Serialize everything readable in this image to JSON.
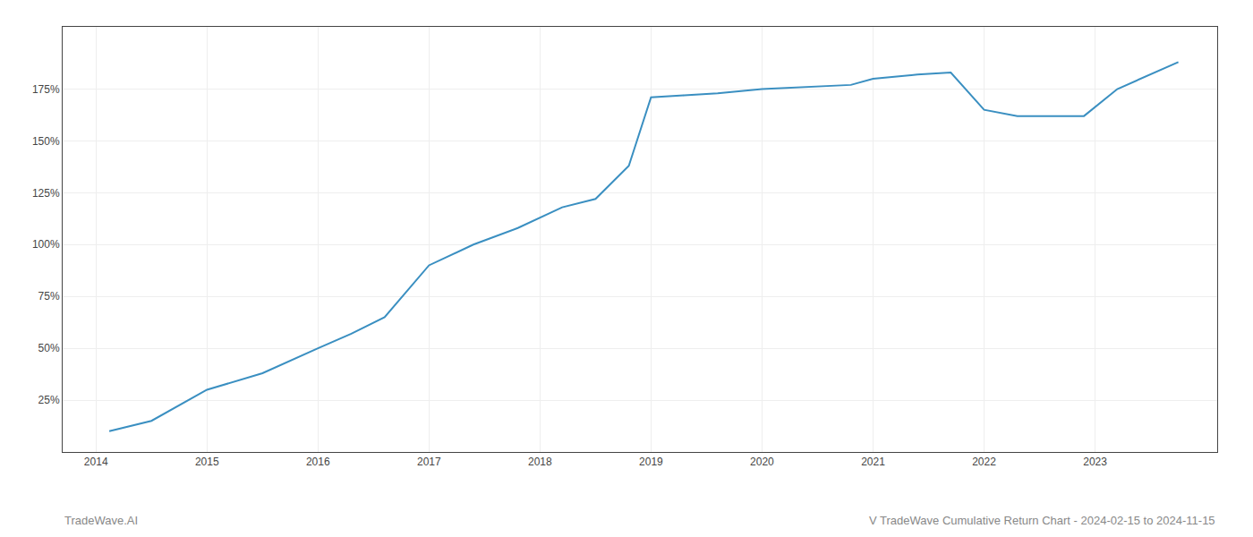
{
  "chart_data": {
    "type": "line",
    "x": [
      2014.12,
      2014.5,
      2015.0,
      2015.5,
      2016.0,
      2016.3,
      2016.6,
      2017.0,
      2017.4,
      2017.8,
      2018.2,
      2018.5,
      2018.8,
      2019.0,
      2019.3,
      2019.6,
      2020.0,
      2020.4,
      2020.8,
      2021.0,
      2021.4,
      2021.7,
      2022.0,
      2022.3,
      2022.6,
      2022.9,
      2023.2,
      2023.75
    ],
    "values": [
      10,
      15,
      30,
      38,
      50,
      57,
      65,
      90,
      100,
      108,
      118,
      122,
      138,
      171,
      172,
      173,
      175,
      176,
      177,
      180,
      182,
      183,
      165,
      162,
      162,
      162,
      175,
      188
    ],
    "color": "#3a8fc1",
    "xlim": [
      2013.7,
      2024.1
    ],
    "xticks": [
      2014,
      2015,
      2016,
      2017,
      2018,
      2019,
      2020,
      2021,
      2022,
      2023
    ],
    "ylim": [
      0,
      205
    ],
    "yticks": [
      {
        "value": 25,
        "label": "25%"
      },
      {
        "value": 50,
        "label": "50%"
      },
      {
        "value": 75,
        "label": "75%"
      },
      {
        "value": 100,
        "label": "100%"
      },
      {
        "value": 125,
        "label": "125%"
      },
      {
        "value": 150,
        "label": "150%"
      },
      {
        "value": 175,
        "label": "175%"
      }
    ],
    "grid": true,
    "annotations": [
      "TradeWave.AI",
      "V TradeWave Cumulative Return Chart - 2024-02-15 to 2024-11-15"
    ]
  }
}
